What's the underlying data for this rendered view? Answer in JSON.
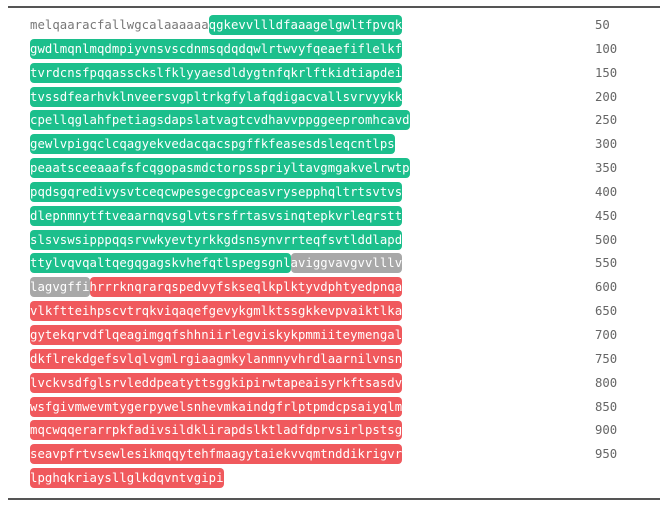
{
  "colors": {
    "signal": "#777777",
    "green_domain": "#1cbf8c",
    "transmembrane": "#a8a8a8",
    "red_domain": "#f0595d",
    "rule": "#555555"
  },
  "rows": [
    {
      "number": "50",
      "segments": [
        {
          "type": "plain",
          "text": "melqaaracfallwgcalaaaaaa"
        },
        {
          "type": "green",
          "text": "qgkevvllldfaaagelgwltfpvqk"
        }
      ]
    },
    {
      "number": "100",
      "segments": [
        {
          "type": "green",
          "text": "gwdlmqnlmqdmpiyvnsvscdnmsqdqdqwlrtwvyfqeaefiflelkf"
        }
      ]
    },
    {
      "number": "150",
      "segments": [
        {
          "type": "green",
          "text": "tvrdcnsfpqqassckslfklyyaesdldygtnfqkrlftkidtiapdei"
        }
      ]
    },
    {
      "number": "200",
      "segments": [
        {
          "type": "green",
          "text": "tvssdfearhvklnveersvgpltrkgfylafqdigacvallsvrvyykk"
        }
      ]
    },
    {
      "number": "250",
      "segments": [
        {
          "type": "green",
          "text": "cpellqglahfpetiagsdapslatvagtcvdhavvppggeepromhcavd"
        }
      ]
    },
    {
      "number": "300",
      "segments": [
        {
          "type": "green",
          "text": "gewlvpigqclcqagyekvedacqacspgffkfeasesdsleqcntlps"
        }
      ]
    },
    {
      "number": "350",
      "segments": [
        {
          "type": "green",
          "text": "peaatsceeaaafsfcqgopasmdctorpsspriyltavgmgakvelrwtp"
        }
      ]
    },
    {
      "number": "400",
      "segments": [
        {
          "type": "green",
          "text": "pqdsgqredivysvtceqcwpesgecgpceasvrysepphqltrtsvtvs"
        }
      ]
    },
    {
      "number": "450",
      "segments": [
        {
          "type": "green",
          "text": "dlepnmnytftveaarnqvsglvtsrsfrtasvsinqtepkvrleqrstt"
        }
      ]
    },
    {
      "number": "500",
      "segments": [
        {
          "type": "green",
          "text": "slsvswsipppqqsrvwkyevtyrkkgdsnsynvrrteqfsvtlddlapd"
        }
      ]
    },
    {
      "number": "550",
      "segments": [
        {
          "type": "green",
          "text": "ttylvqvqaltqegqgagskvhefqtlspegsgnl"
        },
        {
          "type": "gray",
          "text": "aviggvavgvvlllv"
        }
      ]
    },
    {
      "number": "600",
      "segments": [
        {
          "type": "gray",
          "text": "lagvgffi"
        },
        {
          "type": "red",
          "text": "hrrrknqrarqspedvyfskseqlkplktyvdphtyedpnqa"
        }
      ]
    },
    {
      "number": "650",
      "segments": [
        {
          "type": "red",
          "text": "vlkftteihpscvtrqkviqaqefgevykgmlktssgkkevpvaiktlka"
        }
      ]
    },
    {
      "number": "700",
      "segments": [
        {
          "type": "red",
          "text": "gytekqrvdflqeagimgqfshhniirlegviskykpmmiiteymengal"
        }
      ]
    },
    {
      "number": "750",
      "segments": [
        {
          "type": "red",
          "text": "dkflrekdgefsvlqlvgmlrgiaagmkylanmnyvhrdlaarnilvnsn"
        }
      ]
    },
    {
      "number": "800",
      "segments": [
        {
          "type": "red",
          "text": "lvckvsdfglsrvleddpeatyttsggkipirwtapeaisyrkftsasdv"
        }
      ]
    },
    {
      "number": "850",
      "segments": [
        {
          "type": "red",
          "text": "wsfgivmwevmtygerpywelsnhevmkaindgfrlptpmdcpsaiyqlm"
        }
      ]
    },
    {
      "number": "900",
      "segments": [
        {
          "type": "red",
          "text": "mqcwqqerarrpkfadivsildklirapdslktladfdprvsirlpstsg"
        }
      ]
    },
    {
      "number": "950",
      "segments": [
        {
          "type": "red",
          "text": "seavpfrtvsewlesikmqqytehfmaagytaiekvvqmtnddikrigvr"
        }
      ]
    },
    {
      "number": "",
      "segments": [
        {
          "type": "red",
          "text": "lpghqkriaysllglkdqvntvgipi"
        }
      ]
    }
  ]
}
